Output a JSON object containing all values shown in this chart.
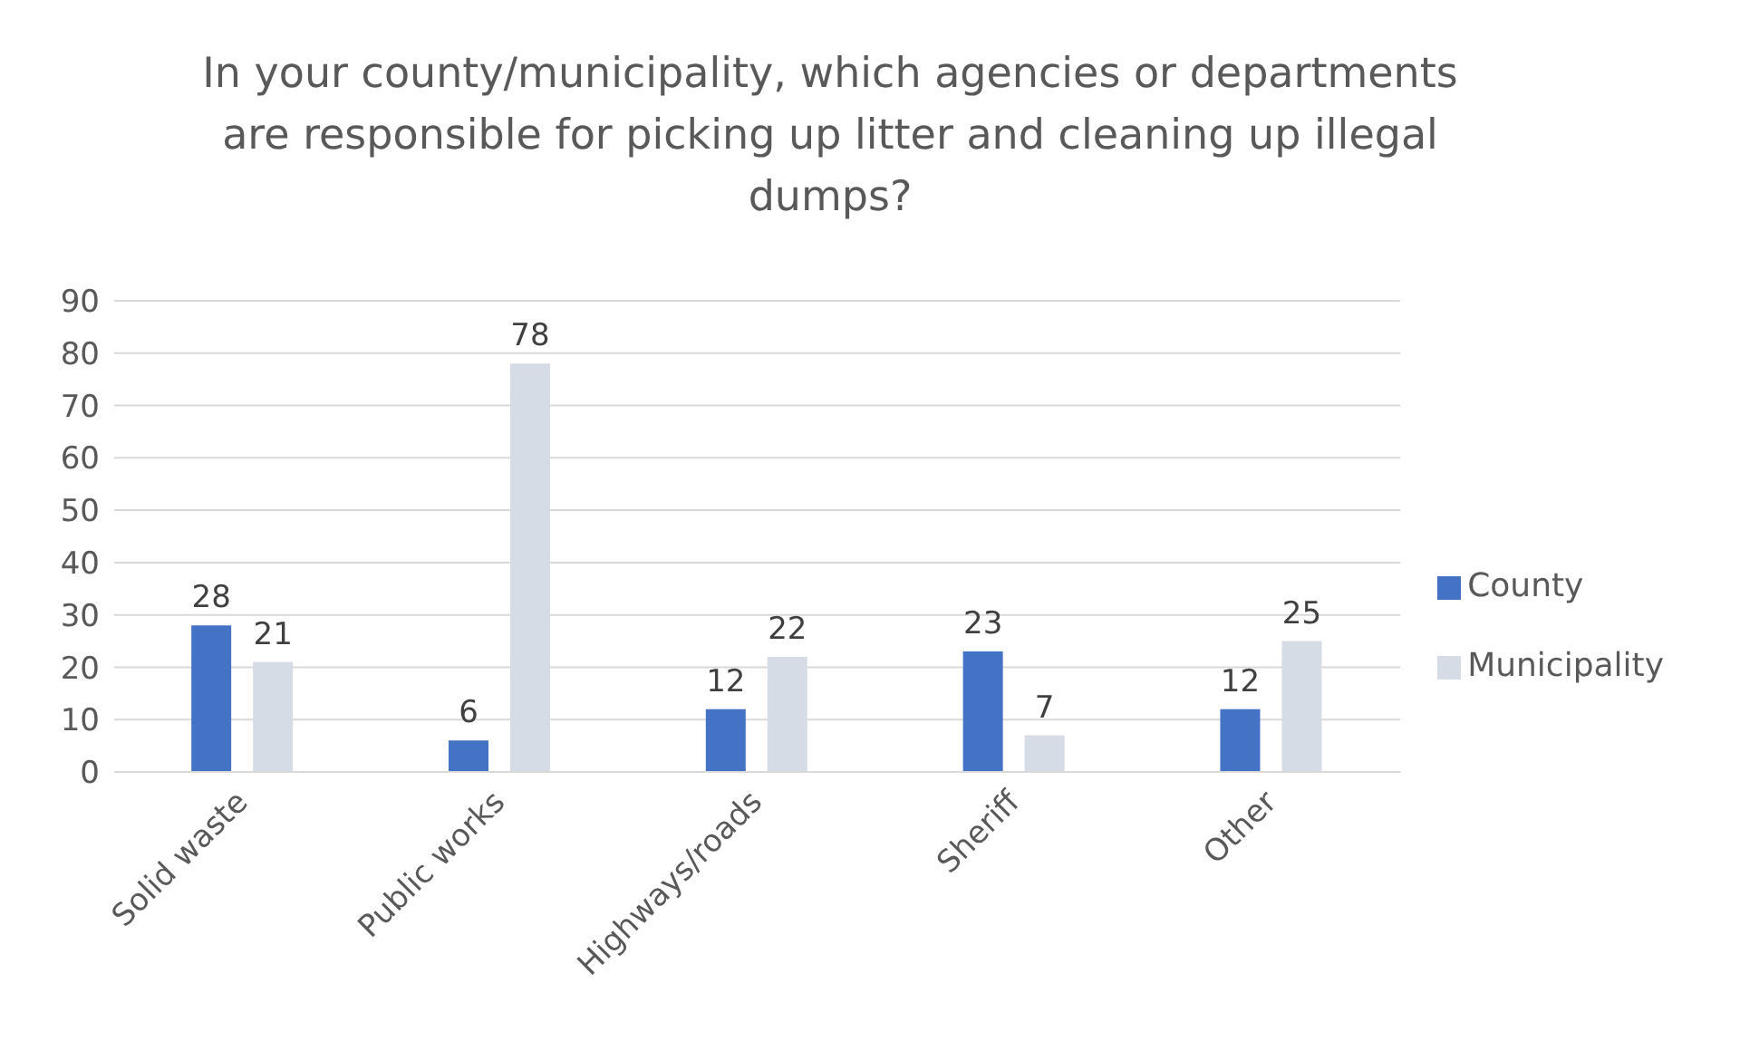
{
  "chart_data": {
    "type": "bar",
    "title": "In your county/municipality, which agencies or departments are responsible for picking up litter and cleaning up illegal dumps?",
    "categories": [
      "Solid waste",
      "Public works",
      "Highways/roads",
      "Sheriff",
      "Other"
    ],
    "series": [
      {
        "name": "County",
        "color": "#4472c4",
        "values": [
          28,
          6,
          12,
          23,
          12
        ]
      },
      {
        "name": "Municipality",
        "color": "#d6dce5",
        "values": [
          21,
          78,
          22,
          7,
          25
        ]
      }
    ],
    "ylim": [
      0,
      90
    ],
    "yticks": [
      0,
      10,
      20,
      30,
      40,
      50,
      60,
      70,
      80,
      90
    ],
    "grid": "y",
    "legend": "right",
    "data_labels": true
  }
}
